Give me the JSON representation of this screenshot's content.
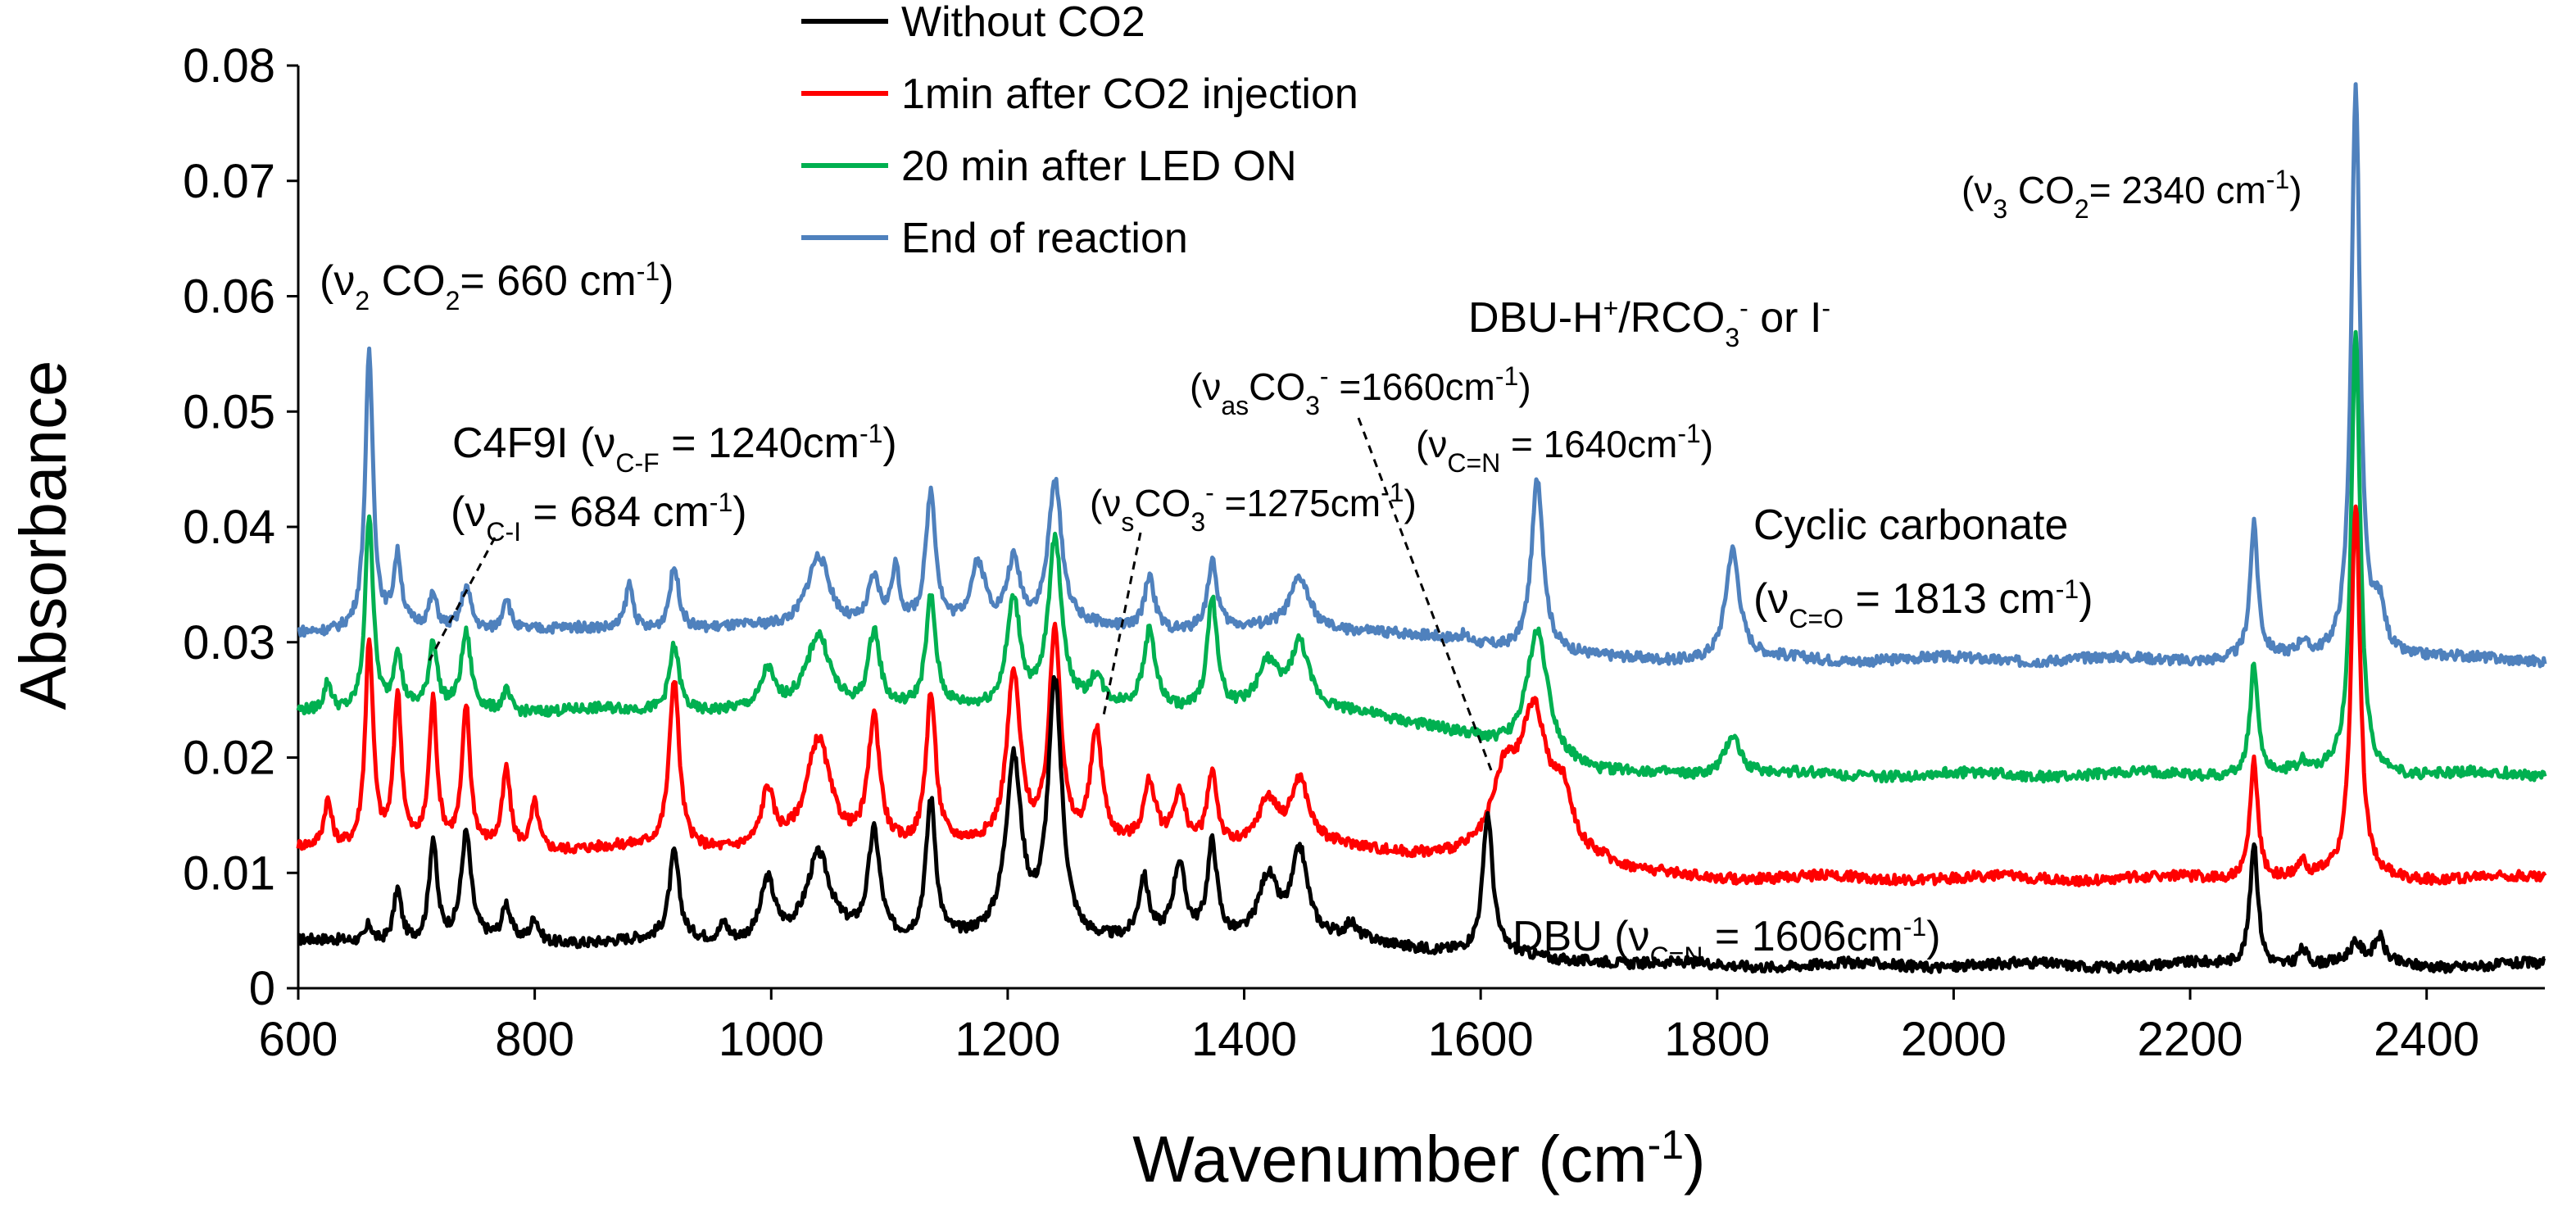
{
  "chart_data": {
    "type": "line",
    "xlabel": "Wavenumber (cm-1)",
    "xlabel_main": "Wavenumber (cm",
    "xlabel_sup": "-1",
    "xlabel_close": ")",
    "ylabel": "Absorbance",
    "xlim": [
      600,
      2500
    ],
    "ylim": [
      0,
      0.08
    ],
    "xticks": [
      600,
      800,
      1000,
      1200,
      1400,
      1600,
      1800,
      2000,
      2200,
      2400
    ],
    "yticks": [
      0,
      0.01,
      0.02,
      0.03,
      0.04,
      0.05,
      0.06,
      0.07,
      0.08
    ],
    "ytick_labels": [
      "0",
      "0.01",
      "0.02",
      "0.03",
      "0.04",
      "0.05",
      "0.06",
      "0.07",
      "0.08"
    ],
    "legend_position": "top-center",
    "series": [
      {
        "name": "Without CO2",
        "color": "#000000",
        "baseline": 0.004,
        "tail": 0.002,
        "peaks": [
          [
            660,
            0.0015,
            3
          ],
          [
            684,
            0.0046,
            4
          ],
          [
            714,
            0.0088,
            4
          ],
          [
            742,
            0.0092,
            5
          ],
          [
            776,
            0.003,
            4
          ],
          [
            800,
            0.002,
            4
          ],
          [
            918,
            0.0075,
            5
          ],
          [
            960,
            0.0015,
            4
          ],
          [
            997,
            0.0052,
            7
          ],
          [
            1040,
            0.0072,
            12
          ],
          [
            1087,
            0.0092,
            6
          ],
          [
            1135,
            0.0122,
            5
          ],
          [
            1205,
            0.0152,
            8
          ],
          [
            1240,
            0.0222,
            7
          ],
          [
            1315,
            0.0051,
            5
          ],
          [
            1345,
            0.0063,
            6
          ],
          [
            1373,
            0.0082,
            5
          ],
          [
            1420,
            0.0055,
            10
          ],
          [
            1447,
            0.0075,
            8
          ],
          [
            1490,
            0.0012,
            5
          ],
          [
            1606,
            0.012,
            5
          ],
          [
            1700,
            0.0005,
            20
          ],
          [
            2254,
            0.0108,
            4
          ],
          [
            2295,
            0.0014,
            5
          ],
          [
            2340,
            0.0016,
            7
          ],
          [
            2360,
            0.0022,
            5
          ]
        ]
      },
      {
        "name": "1min after CO2 injection",
        "color": "#ff0000",
        "baseline": 0.012,
        "tail": 0.0095,
        "peaks": [
          [
            625,
            0.004,
            4
          ],
          [
            660,
            0.0182,
            4
          ],
          [
            684,
            0.0132,
            4
          ],
          [
            714,
            0.0125,
            4
          ],
          [
            742,
            0.012,
            4
          ],
          [
            776,
            0.0068,
            4
          ],
          [
            800,
            0.004,
            4
          ],
          [
            918,
            0.0148,
            5
          ],
          [
            997,
            0.0048,
            6
          ],
          [
            1040,
            0.0092,
            12
          ],
          [
            1087,
            0.0112,
            6
          ],
          [
            1135,
            0.0131,
            5
          ],
          [
            1205,
            0.0148,
            7
          ],
          [
            1240,
            0.0188,
            6
          ],
          [
            1275,
            0.0098,
            6
          ],
          [
            1320,
            0.0052,
            6
          ],
          [
            1345,
            0.0045,
            6
          ],
          [
            1373,
            0.0065,
            5
          ],
          [
            1420,
            0.004,
            10
          ],
          [
            1447,
            0.0055,
            9
          ],
          [
            1620,
            0.006,
            12
          ],
          [
            1645,
            0.0128,
            15
          ],
          [
            1670,
            0.005,
            10
          ],
          [
            1700,
            0.001,
            20
          ],
          [
            2254,
            0.0104,
            4
          ],
          [
            2295,
            0.0012,
            4
          ],
          [
            2340,
            0.0325,
            4.5
          ]
        ]
      },
      {
        "name": "20 min after LED ON",
        "color": "#00b050",
        "baseline": 0.024,
        "tail": 0.0185,
        "peaks": [
          [
            625,
            0.0025,
            4
          ],
          [
            660,
            0.0172,
            4
          ],
          [
            684,
            0.005,
            4
          ],
          [
            714,
            0.0058,
            4
          ],
          [
            742,
            0.0066,
            5
          ],
          [
            776,
            0.0018,
            4
          ],
          [
            918,
            0.0058,
            5
          ],
          [
            997,
            0.0032,
            6
          ],
          [
            1040,
            0.0065,
            12
          ],
          [
            1087,
            0.0068,
            6
          ],
          [
            1135,
            0.0095,
            5
          ],
          [
            1205,
            0.0095,
            7
          ],
          [
            1240,
            0.0147,
            7
          ],
          [
            1275,
            0.0025,
            6
          ],
          [
            1320,
            0.0067,
            6
          ],
          [
            1373,
            0.0098,
            5
          ],
          [
            1420,
            0.0038,
            10
          ],
          [
            1447,
            0.0055,
            9
          ],
          [
            1648,
            0.0112,
            11
          ],
          [
            1813,
            0.0035,
            8
          ],
          [
            2254,
            0.0097,
            4
          ],
          [
            2295,
            0.0008,
            4
          ],
          [
            2340,
            0.0385,
            4.5
          ]
        ]
      },
      {
        "name": "End of reaction",
        "color": "#4f81bd",
        "baseline": 0.031,
        "tail": 0.0285,
        "peaks": [
          [
            660,
            0.0238,
            4
          ],
          [
            684,
            0.006,
            4
          ],
          [
            714,
            0.0028,
            4
          ],
          [
            742,
            0.0038,
            5
          ],
          [
            776,
            0.003,
            4
          ],
          [
            880,
            0.004,
            4
          ],
          [
            918,
            0.0055,
            5
          ],
          [
            1040,
            0.0065,
            12
          ],
          [
            1087,
            0.004,
            6
          ],
          [
            1105,
            0.0048,
            4
          ],
          [
            1135,
            0.0115,
            5
          ],
          [
            1175,
            0.0055,
            8
          ],
          [
            1205,
            0.0058,
            7
          ],
          [
            1240,
            0.0125,
            7
          ],
          [
            1320,
            0.0048,
            5
          ],
          [
            1373,
            0.0058,
            5
          ],
          [
            1447,
            0.0045,
            10
          ],
          [
            1585,
            0.0005,
            5
          ],
          [
            1648,
            0.0152,
            6
          ],
          [
            1813,
            0.0095,
            7
          ],
          [
            2254,
            0.0115,
            4
          ],
          [
            2295,
            0.0012,
            4
          ],
          [
            2340,
            0.0495,
            4.5
          ],
          [
            2360,
            0.004,
            6
          ]
        ]
      }
    ],
    "annotations": [
      {
        "parts": [
          [
            "(ν",
            ""
          ],
          [
            "2",
            "sub"
          ],
          [
            " CO",
            ""
          ],
          [
            "2",
            "sub"
          ],
          [
            "= 660 cm",
            ""
          ],
          [
            "-1",
            "sup"
          ],
          [
            ")",
            ""
          ]
        ]
      },
      {
        "parts": [
          [
            "(ν",
            ""
          ],
          [
            "3",
            "sub"
          ],
          [
            " CO",
            ""
          ],
          [
            "2",
            "sub"
          ],
          [
            "= 2340 cm",
            ""
          ],
          [
            "-1",
            "sup"
          ],
          [
            ")",
            ""
          ]
        ]
      },
      {
        "parts": [
          [
            "C4F9I (ν",
            ""
          ],
          [
            "C-F",
            "sub"
          ],
          [
            " = 1240cm",
            ""
          ],
          [
            "-1",
            "sup"
          ],
          [
            ")",
            ""
          ]
        ]
      },
      {
        "parts": [
          [
            "(ν",
            ""
          ],
          [
            "C-I",
            "sub"
          ],
          [
            " = 684 cm",
            ""
          ],
          [
            "-1",
            "sup"
          ],
          [
            ")",
            ""
          ]
        ]
      },
      {
        "parts": [
          [
            "(ν",
            ""
          ],
          [
            "s",
            "sub"
          ],
          [
            "CO",
            ""
          ],
          [
            "3",
            "sub"
          ],
          [
            "-",
            "sup"
          ],
          [
            " =1275cm",
            ""
          ],
          [
            "-1",
            "sup"
          ],
          [
            ")",
            ""
          ]
        ]
      },
      {
        "parts": [
          [
            "DBU-H",
            ""
          ],
          [
            "+",
            "sup"
          ],
          [
            "/RCO",
            ""
          ],
          [
            "3",
            "sub"
          ],
          [
            "-",
            "sup"
          ],
          [
            " or I",
            ""
          ],
          [
            "-",
            "sup"
          ]
        ]
      },
      {
        "parts": [
          [
            "(ν",
            ""
          ],
          [
            "as",
            "sub"
          ],
          [
            "CO",
            ""
          ],
          [
            "3",
            "sub"
          ],
          [
            "-",
            "sup"
          ],
          [
            " =1660cm",
            ""
          ],
          [
            "-1",
            "sup"
          ],
          [
            ")",
            ""
          ]
        ]
      },
      {
        "parts": [
          [
            "(ν",
            ""
          ],
          [
            "C=N",
            "sub"
          ],
          [
            " = 1640cm",
            ""
          ],
          [
            "-1",
            "sup"
          ],
          [
            ")",
            ""
          ]
        ]
      },
      {
        "parts": [
          [
            "Cyclic carbonate",
            ""
          ]
        ]
      },
      {
        "parts": [
          [
            "(ν",
            ""
          ],
          [
            "C=O",
            "sub"
          ],
          [
            " = 1813 cm",
            ""
          ],
          [
            "-1",
            "sup"
          ],
          [
            ")",
            ""
          ]
        ]
      },
      {
        "parts": [
          [
            "DBU (ν",
            ""
          ],
          [
            "C=N",
            "sub"
          ],
          [
            " = 1606cm",
            ""
          ],
          [
            "-1",
            "sup"
          ],
          [
            ")",
            ""
          ]
        ]
      }
    ]
  }
}
